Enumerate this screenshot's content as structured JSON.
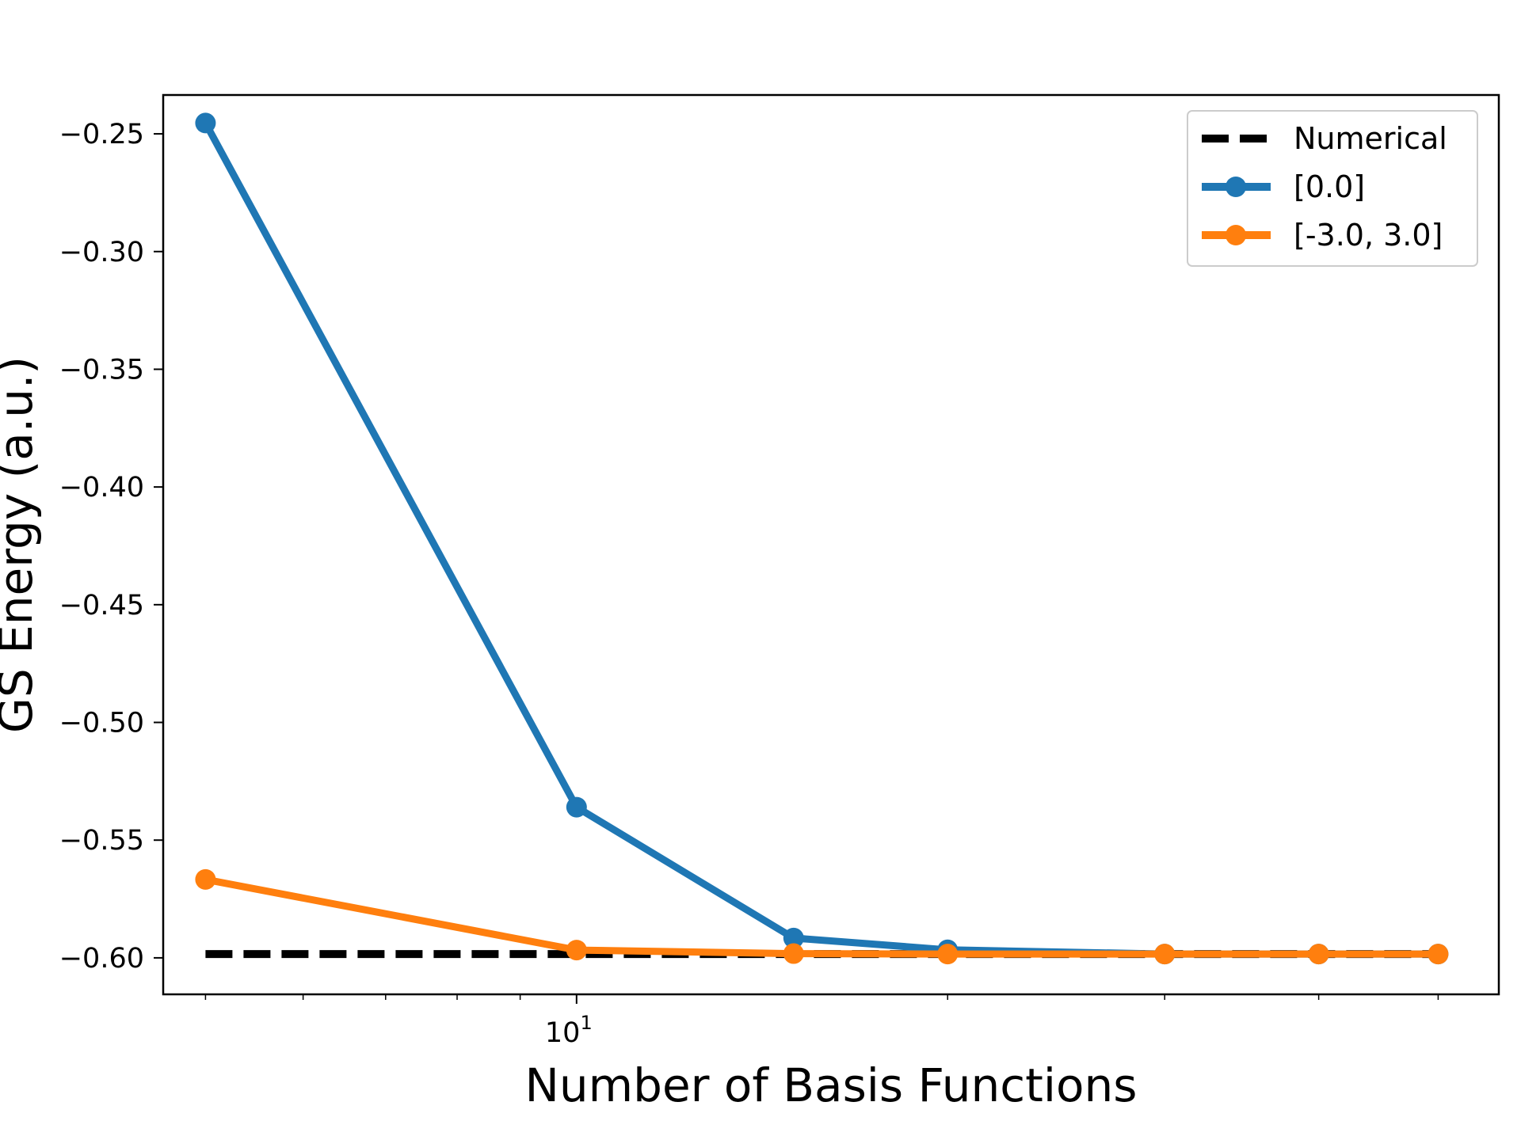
{
  "chart_data": {
    "type": "line",
    "xlabel": "Number of Basis Functions",
    "ylabel": "GS Energy (a.u.)",
    "xscale": "log",
    "xlim": [
      4.62,
      56.0
    ],
    "ylim": [
      -0.6155,
      -0.2335
    ],
    "grid": false,
    "legend_position": "top-right",
    "x_major_ticks": [
      {
        "value": 10,
        "base": "10",
        "exponent": "1"
      }
    ],
    "x_minor_ticks": [
      5,
      6,
      7,
      8,
      9,
      20,
      30,
      40,
      50
    ],
    "y_ticks": [
      {
        "value": -0.25,
        "label": "−0.25"
      },
      {
        "value": -0.3,
        "label": "−0.30"
      },
      {
        "value": -0.35,
        "label": "−0.35"
      },
      {
        "value": -0.4,
        "label": "−0.40"
      },
      {
        "value": -0.45,
        "label": "−0.45"
      },
      {
        "value": -0.5,
        "label": "−0.50"
      },
      {
        "value": -0.55,
        "label": "−0.55"
      },
      {
        "value": -0.6,
        "label": "−0.60"
      }
    ],
    "series": [
      {
        "name": "Numerical",
        "color": "#000000",
        "style": "dashed",
        "marker": "none",
        "x": [
          5,
          50
        ],
        "y": [
          -0.5984,
          -0.5984
        ]
      },
      {
        "name": "[0.0]",
        "color": "#1f77b4",
        "style": "solid",
        "marker": "circle",
        "x": [
          5,
          10,
          15,
          20,
          30,
          40,
          50
        ],
        "y": [
          -0.2454,
          -0.536,
          -0.5916,
          -0.5966,
          -0.5984,
          -0.5984,
          -0.5984
        ]
      },
      {
        "name": "[-3.0, 3.0]",
        "color": "#ff7f0e",
        "style": "solid",
        "marker": "circle",
        "x": [
          5,
          10,
          15,
          20,
          30,
          40,
          50
        ],
        "y": [
          -0.5667,
          -0.5967,
          -0.5982,
          -0.5984,
          -0.5984,
          -0.5984,
          -0.5984
        ]
      }
    ]
  }
}
